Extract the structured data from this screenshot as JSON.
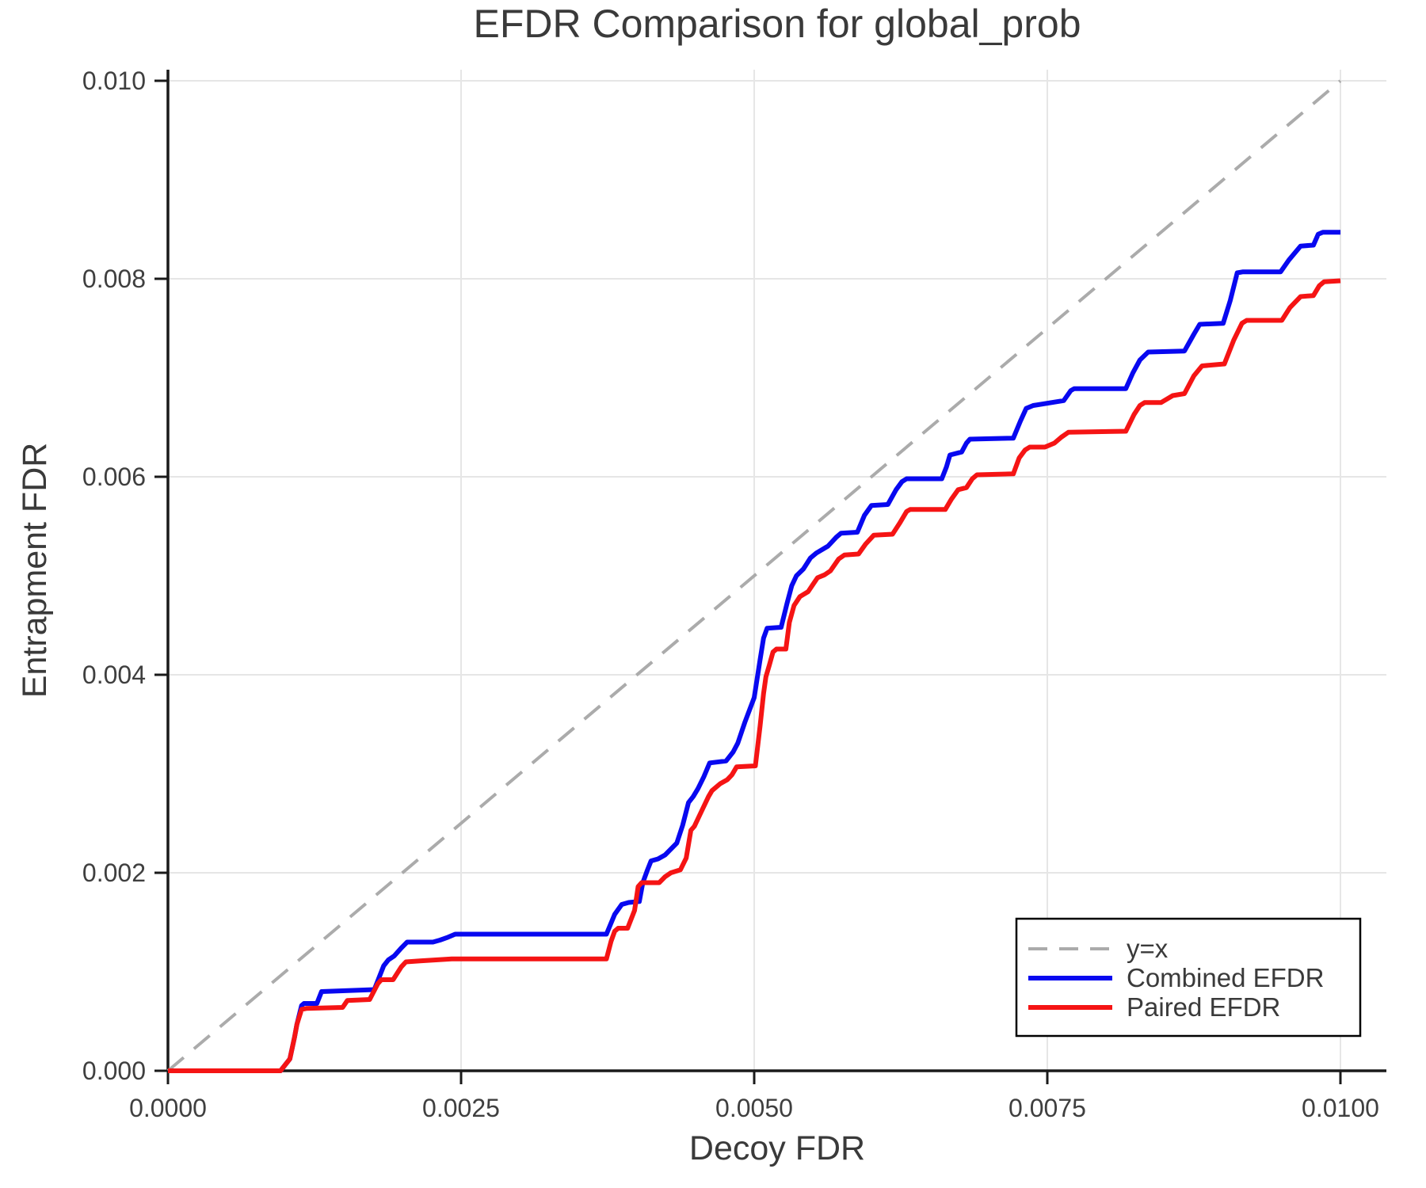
{
  "title": "EFDR Comparison for global_prob",
  "axes": {
    "xlabel": "Decoy FDR",
    "ylabel": "Entrapment FDR"
  },
  "legend": {
    "position": "lower right",
    "items": [
      {
        "label": "y=x",
        "color": "#ababab",
        "style": "dashed"
      },
      {
        "label": "Combined EFDR",
        "color": "#0808f0",
        "style": "solid"
      },
      {
        "label": "Paired EFDR",
        "color": "#f51414",
        "style": "solid"
      }
    ]
  },
  "colors": {
    "grid": "#e6e6e6",
    "spine": "#1a1a1a",
    "text": "#3a3a3a",
    "reference": "#ababab",
    "combined": "#0808f0",
    "paired": "#f51414",
    "background": "#ffffff",
    "legend_border": "#000000"
  },
  "chart_data": {
    "type": "line",
    "title": "EFDR Comparison for global_prob",
    "xlabel": "Decoy FDR",
    "ylabel": "Entrapment FDR",
    "grid": true,
    "legend_position": "lower right",
    "xlim": [
      0,
      0.010392
    ],
    "ylim": [
      0,
      0.010112
    ],
    "xticks": {
      "values": [
        0,
        0.0025,
        0.005,
        0.0075,
        0.01
      ],
      "labels": [
        "0.0000",
        "0.0025",
        "0.0050",
        "0.0075",
        "0.0100"
      ]
    },
    "yticks": {
      "values": [
        0,
        0.002,
        0.004,
        0.006,
        0.008,
        0.01
      ],
      "labels": [
        "0.000",
        "0.002",
        "0.004",
        "0.006",
        "0.008",
        "0.010"
      ]
    },
    "reference_line": {
      "name": "y=x",
      "from": [
        0,
        0
      ],
      "to": [
        0.01,
        0.01
      ],
      "style": "dashed",
      "color": "#ababab"
    },
    "series": [
      {
        "name": "Combined EFDR",
        "color": "#0808f0",
        "points": [
          [
            0,
            0
          ],
          [
            0.00096,
            0
          ],
          [
            0.00104,
            0.00012
          ],
          [
            0.00108,
            0.00034
          ],
          [
            0.0011,
            0.00047
          ],
          [
            0.00114,
            0.00066
          ],
          [
            0.00116,
            0.00068
          ],
          [
            0.00127,
            0.00068
          ],
          [
            0.00131,
            0.0008
          ],
          [
            0.00176,
            0.00082
          ],
          [
            0.00184,
            0.00106
          ],
          [
            0.00188,
            0.00112
          ],
          [
            0.00193,
            0.00116
          ],
          [
            0.00199,
            0.00124
          ],
          [
            0.00204,
            0.0013
          ],
          [
            0.00226,
            0.0013
          ],
          [
            0.00232,
            0.00132
          ],
          [
            0.00239,
            0.00135
          ],
          [
            0.00245,
            0.00138
          ],
          [
            0.00374,
            0.00138
          ],
          [
            0.00381,
            0.00158
          ],
          [
            0.00387,
            0.00168
          ],
          [
            0.00393,
            0.0017
          ],
          [
            0.00402,
            0.00171
          ],
          [
            0.00405,
            0.0019
          ],
          [
            0.00409,
            0.00203
          ],
          [
            0.00412,
            0.00212
          ],
          [
            0.00418,
            0.00214
          ],
          [
            0.00424,
            0.00218
          ],
          [
            0.00434,
            0.0023
          ],
          [
            0.00439,
            0.00248
          ],
          [
            0.00444,
            0.00271
          ],
          [
            0.00448,
            0.00277
          ],
          [
            0.00452,
            0.00285
          ],
          [
            0.00457,
            0.00297
          ],
          [
            0.00462,
            0.00311
          ],
          [
            0.00476,
            0.00313
          ],
          [
            0.00482,
            0.00322
          ],
          [
            0.00486,
            0.00331
          ],
          [
            0.00492,
            0.00352
          ],
          [
            0.005,
            0.00377
          ],
          [
            0.00505,
            0.00415
          ],
          [
            0.00508,
            0.00437
          ],
          [
            0.00511,
            0.00447
          ],
          [
            0.00523,
            0.00448
          ],
          [
            0.00528,
            0.00472
          ],
          [
            0.00532,
            0.0049
          ],
          [
            0.00536,
            0.005
          ],
          [
            0.00542,
            0.00507
          ],
          [
            0.00548,
            0.00518
          ],
          [
            0.00553,
            0.00523
          ],
          [
            0.00563,
            0.0053
          ],
          [
            0.0057,
            0.00539
          ],
          [
            0.00574,
            0.00543
          ],
          [
            0.00588,
            0.00544
          ],
          [
            0.00594,
            0.00561
          ],
          [
            0.006,
            0.00571
          ],
          [
            0.00614,
            0.00572
          ],
          [
            0.00621,
            0.00587
          ],
          [
            0.00626,
            0.00595
          ],
          [
            0.0063,
            0.00598
          ],
          [
            0.0066,
            0.00598
          ],
          [
            0.00664,
            0.0061
          ],
          [
            0.00667,
            0.00622
          ],
          [
            0.00677,
            0.00625
          ],
          [
            0.00681,
            0.00634
          ],
          [
            0.00684,
            0.00638
          ],
          [
            0.00721,
            0.00639
          ],
          [
            0.00727,
            0.00656
          ],
          [
            0.00732,
            0.00669
          ],
          [
            0.00738,
            0.00672
          ],
          [
            0.00764,
            0.00677
          ],
          [
            0.0077,
            0.00687
          ],
          [
            0.00773,
            0.00689
          ],
          [
            0.00817,
            0.00689
          ],
          [
            0.00823,
            0.00705
          ],
          [
            0.00829,
            0.00718
          ],
          [
            0.00836,
            0.00726
          ],
          [
            0.00867,
            0.00727
          ],
          [
            0.00875,
            0.00744
          ],
          [
            0.0088,
            0.00754
          ],
          [
            0.009,
            0.00755
          ],
          [
            0.00906,
            0.00778
          ],
          [
            0.00912,
            0.00806
          ],
          [
            0.00917,
            0.00807
          ],
          [
            0.00949,
            0.00807
          ],
          [
            0.00956,
            0.00819
          ],
          [
            0.00966,
            0.00833
          ],
          [
            0.00977,
            0.00834
          ],
          [
            0.00981,
            0.00845
          ],
          [
            0.00985,
            0.00847
          ],
          [
            0.01,
            0.00847
          ]
        ]
      },
      {
        "name": "Paired EFDR",
        "color": "#f51414",
        "points": [
          [
            0,
            0
          ],
          [
            0.00096,
            0
          ],
          [
            0.00104,
            0.00012
          ],
          [
            0.00108,
            0.00034
          ],
          [
            0.0011,
            0.00047
          ],
          [
            0.00114,
            0.00062
          ],
          [
            0.00118,
            0.00063
          ],
          [
            0.00149,
            0.00064
          ],
          [
            0.00153,
            0.00071
          ],
          [
            0.00172,
            0.00072
          ],
          [
            0.00179,
            0.00088
          ],
          [
            0.00182,
            0.00092
          ],
          [
            0.00192,
            0.00092
          ],
          [
            0.00199,
            0.00105
          ],
          [
            0.00203,
            0.0011
          ],
          [
            0.00215,
            0.00111
          ],
          [
            0.00242,
            0.00113
          ],
          [
            0.00374,
            0.00113
          ],
          [
            0.00378,
            0.00131
          ],
          [
            0.00381,
            0.00141
          ],
          [
            0.00384,
            0.00144
          ],
          [
            0.00392,
            0.00144
          ],
          [
            0.00398,
            0.00162
          ],
          [
            0.00401,
            0.00186
          ],
          [
            0.00404,
            0.0019
          ],
          [
            0.00419,
            0.0019
          ],
          [
            0.00424,
            0.00196
          ],
          [
            0.00429,
            0.002
          ],
          [
            0.00437,
            0.00203
          ],
          [
            0.00442,
            0.00215
          ],
          [
            0.00446,
            0.00243
          ],
          [
            0.00449,
            0.00247
          ],
          [
            0.00455,
            0.00262
          ],
          [
            0.00461,
            0.00277
          ],
          [
            0.00464,
            0.00283
          ],
          [
            0.00471,
            0.0029
          ],
          [
            0.00477,
            0.00294
          ],
          [
            0.00481,
            0.00299
          ],
          [
            0.00485,
            0.00307
          ],
          [
            0.00501,
            0.00308
          ],
          [
            0.00505,
            0.00348
          ],
          [
            0.00508,
            0.00381
          ],
          [
            0.0051,
            0.00398
          ],
          [
            0.00513,
            0.0041
          ],
          [
            0.00516,
            0.00423
          ],
          [
            0.00519,
            0.00426
          ],
          [
            0.00527,
            0.00426
          ],
          [
            0.0053,
            0.00453
          ],
          [
            0.00534,
            0.0047
          ],
          [
            0.00539,
            0.00479
          ],
          [
            0.00546,
            0.00484
          ],
          [
            0.0055,
            0.00491
          ],
          [
            0.00554,
            0.00498
          ],
          [
            0.0056,
            0.00501
          ],
          [
            0.00565,
            0.00505
          ],
          [
            0.00572,
            0.00517
          ],
          [
            0.00577,
            0.00521
          ],
          [
            0.00589,
            0.00522
          ],
          [
            0.00595,
            0.00532
          ],
          [
            0.00602,
            0.00541
          ],
          [
            0.00618,
            0.00542
          ],
          [
            0.00624,
            0.00553
          ],
          [
            0.0063,
            0.00565
          ],
          [
            0.00633,
            0.00567
          ],
          [
            0.00663,
            0.00567
          ],
          [
            0.00668,
            0.00577
          ],
          [
            0.00674,
            0.00587
          ],
          [
            0.00681,
            0.00589
          ],
          [
            0.00686,
            0.00598
          ],
          [
            0.0069,
            0.00602
          ],
          [
            0.00721,
            0.00603
          ],
          [
            0.00726,
            0.00619
          ],
          [
            0.00731,
            0.00627
          ],
          [
            0.00735,
            0.0063
          ],
          [
            0.00748,
            0.0063
          ],
          [
            0.00756,
            0.00634
          ],
          [
            0.00762,
            0.0064
          ],
          [
            0.00768,
            0.00645
          ],
          [
            0.00817,
            0.00646
          ],
          [
            0.00824,
            0.00663
          ],
          [
            0.00829,
            0.00672
          ],
          [
            0.00833,
            0.00675
          ],
          [
            0.00847,
            0.00675
          ],
          [
            0.00857,
            0.00682
          ],
          [
            0.00867,
            0.00684
          ],
          [
            0.00875,
            0.00702
          ],
          [
            0.00882,
            0.00712
          ],
          [
            0.00901,
            0.00714
          ],
          [
            0.00909,
            0.00738
          ],
          [
            0.00916,
            0.00755
          ],
          [
            0.0092,
            0.00758
          ],
          [
            0.0095,
            0.00758
          ],
          [
            0.00957,
            0.00771
          ],
          [
            0.00966,
            0.00782
          ],
          [
            0.00977,
            0.00783
          ],
          [
            0.00982,
            0.00793
          ],
          [
            0.00986,
            0.00797
          ],
          [
            0.01,
            0.00798
          ]
        ]
      }
    ]
  }
}
